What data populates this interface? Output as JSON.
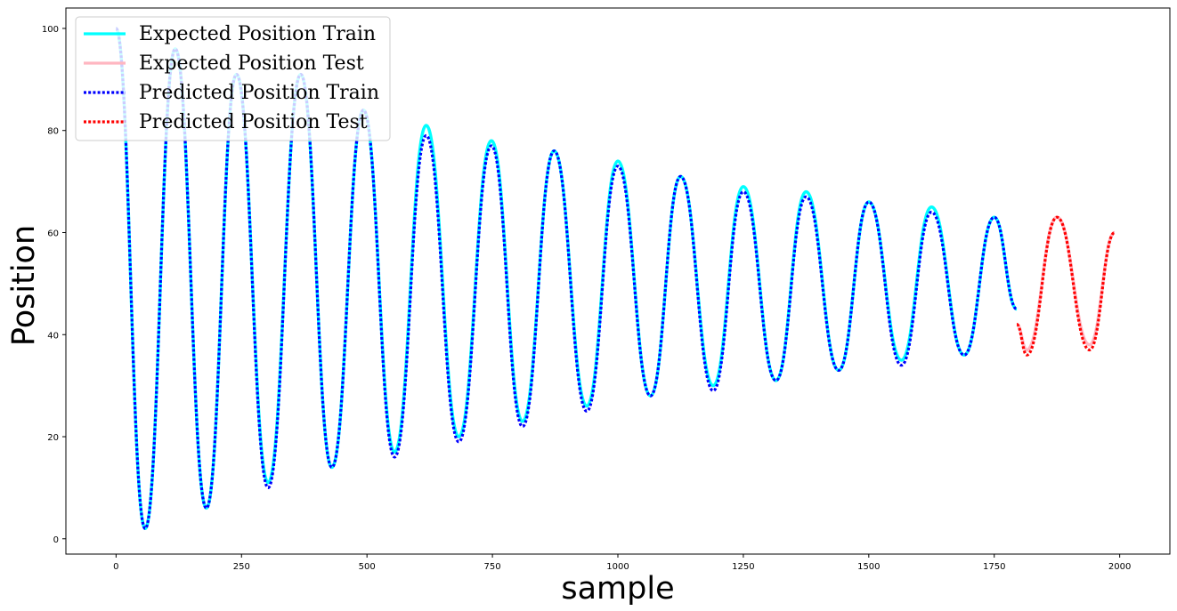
{
  "chart_data": {
    "type": "line",
    "title": "",
    "xlabel": "sample",
    "ylabel": "Position",
    "xlim": [
      -100,
      2100
    ],
    "ylim": [
      -3,
      104
    ],
    "xticks": [
      0,
      250,
      500,
      750,
      1000,
      1250,
      1500,
      1750,
      2000
    ],
    "yticks": [
      0,
      20,
      40,
      60,
      80,
      100
    ],
    "grid": false,
    "legend_position": "top-left",
    "series": [
      {
        "name": "Expected Position Train",
        "color": "#00ffff",
        "style": "solid",
        "x": [
          0,
          58,
          118,
          180,
          240,
          303,
          368,
          430,
          493,
          555,
          618,
          683,
          748,
          810,
          873,
          938,
          1000,
          1065,
          1125,
          1190,
          1250,
          1315,
          1375,
          1440,
          1500,
          1565,
          1625,
          1690,
          1750,
          1795
        ],
        "y": [
          100,
          2,
          96,
          6,
          91,
          11,
          91,
          14,
          84,
          17,
          81,
          20,
          78,
          23,
          76,
          26,
          74,
          28,
          71,
          30,
          69,
          31,
          68,
          33,
          66,
          35,
          65,
          36,
          63,
          45
        ]
      },
      {
        "name": "Expected Position Test",
        "color": "#ffb6c1",
        "style": "solid",
        "x": [
          1795,
          1815,
          1875,
          1940,
          1990
        ],
        "y": [
          42,
          37,
          63,
          38,
          60
        ]
      },
      {
        "name": "Predicted Position Train",
        "color": "#0000ff",
        "style": "dotted",
        "x": [
          0,
          58,
          118,
          180,
          240,
          303,
          368,
          430,
          493,
          555,
          618,
          683,
          748,
          810,
          873,
          938,
          1000,
          1065,
          1125,
          1190,
          1250,
          1315,
          1375,
          1440,
          1500,
          1565,
          1625,
          1690,
          1750,
          1795
        ],
        "y": [
          100,
          2,
          96,
          6,
          91,
          10,
          91,
          14,
          84,
          16,
          79,
          19,
          77,
          22,
          76,
          25,
          73,
          28,
          71,
          29,
          68,
          31,
          67,
          33,
          66,
          34,
          64,
          36,
          63,
          45
        ]
      },
      {
        "name": "Predicted Position Test",
        "color": "#ff0000",
        "style": "dotted",
        "x": [
          1795,
          1815,
          1875,
          1940,
          1990
        ],
        "y": [
          42,
          36,
          63,
          37,
          60
        ]
      }
    ]
  }
}
